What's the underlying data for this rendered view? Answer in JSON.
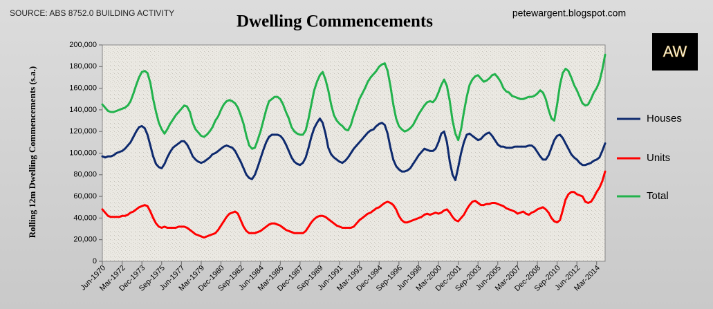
{
  "chart_data": {
    "type": "line",
    "title": "Dwelling Commencements",
    "source": "SOURCE: ABS 8752.0 BUILDING ACTIVITY",
    "watermark": "petewargent.blogspot.com",
    "logo": "AW",
    "y_label": "Rolling 12m Dwelling Commencements (s.a.)",
    "legend": "right",
    "ylim": [
      0,
      200000
    ],
    "yticks": [
      0,
      {
        "value": 20000,
        "label": "20,000"
      },
      {
        "value": 40000,
        "label": "40,000"
      },
      {
        "value": 60000,
        "label": "60,000"
      },
      {
        "value": 80000,
        "label": "80,000"
      },
      {
        "value": 100000,
        "label": "100,000"
      },
      {
        "value": 120000,
        "label": "120,000"
      },
      {
        "value": 140000,
        "label": "140,000"
      },
      {
        "value": 160000,
        "label": "160,000"
      },
      {
        "value": 180000,
        "label": "180,000"
      },
      {
        "value": 200000,
        "label": "200,000"
      }
    ],
    "categories": [
      "Jun-1970",
      null,
      null,
      null,
      null,
      null,
      null,
      "Mar-1972",
      null,
      null,
      null,
      null,
      null,
      null,
      "Dec-1973",
      null,
      null,
      null,
      null,
      null,
      null,
      "Sep-1975",
      null,
      null,
      null,
      null,
      null,
      null,
      "Jun-1977",
      null,
      null,
      null,
      null,
      null,
      null,
      "Mar-1979",
      null,
      null,
      null,
      null,
      null,
      null,
      "Dec-1980",
      null,
      null,
      null,
      null,
      null,
      null,
      "Sep-1982",
      null,
      null,
      null,
      null,
      null,
      null,
      "Jun-1984",
      null,
      null,
      null,
      null,
      null,
      null,
      "Mar-1986",
      null,
      null,
      null,
      null,
      null,
      null,
      "Dec-1987",
      null,
      null,
      null,
      null,
      null,
      null,
      "Sep-1989",
      null,
      null,
      null,
      null,
      null,
      null,
      "Jun-1991",
      null,
      null,
      null,
      null,
      null,
      null,
      "Mar-1993",
      null,
      null,
      null,
      null,
      null,
      null,
      "Dec-1994",
      null,
      null,
      null,
      null,
      null,
      null,
      "Sep-1996",
      null,
      null,
      null,
      null,
      null,
      null,
      "Jun-1998",
      null,
      null,
      null,
      null,
      null,
      null,
      "Mar-2000",
      null,
      null,
      null,
      null,
      null,
      null,
      "Dec-2001",
      null,
      null,
      null,
      null,
      null,
      null,
      "Sep-2003",
      null,
      null,
      null,
      null,
      null,
      null,
      "Jun-2005",
      null,
      null,
      null,
      null,
      null,
      null,
      "Mar-2007",
      null,
      null,
      null,
      null,
      null,
      null,
      "Dec-2008",
      null,
      null,
      null,
      null,
      null,
      null,
      "Sep-2010",
      null,
      null,
      null,
      null,
      null,
      null,
      "Jun-2012",
      null,
      null,
      null,
      null,
      null,
      null,
      "Mar-2014",
      null,
      null,
      null
    ],
    "series": [
      {
        "name": "Houses",
        "color": "#0e2a6e",
        "values": [
          97000,
          96000,
          97000,
          97000,
          98000,
          100000,
          101000,
          102000,
          104000,
          107000,
          110000,
          115000,
          120000,
          124000,
          125000,
          123000,
          117000,
          107000,
          97000,
          90000,
          87000,
          86000,
          90000,
          96000,
          101000,
          105000,
          107000,
          109000,
          111000,
          111000,
          108000,
          103000,
          97000,
          94000,
          92000,
          91000,
          92000,
          94000,
          96000,
          99000,
          100000,
          102000,
          104000,
          106000,
          107000,
          106000,
          105000,
          102000,
          97000,
          92000,
          86000,
          80000,
          77000,
          76000,
          80000,
          87000,
          95000,
          103000,
          110000,
          115000,
          117000,
          117000,
          117000,
          116000,
          113000,
          108000,
          102000,
          96000,
          92000,
          90000,
          89000,
          91000,
          96000,
          105000,
          115000,
          123000,
          128000,
          132000,
          128000,
          118000,
          105000,
          99000,
          96000,
          94000,
          92000,
          91000,
          93000,
          96000,
          100000,
          104000,
          107000,
          110000,
          113000,
          116000,
          119000,
          121000,
          122000,
          125000,
          127000,
          128000,
          126000,
          118000,
          105000,
          94000,
          88000,
          85000,
          83000,
          83000,
          84000,
          86000,
          90000,
          94000,
          98000,
          101000,
          104000,
          103000,
          102000,
          102000,
          104000,
          110000,
          118000,
          120000,
          110000,
          92000,
          80000,
          75000,
          87000,
          100000,
          110000,
          117000,
          118000,
          116000,
          114000,
          112000,
          113000,
          116000,
          118000,
          119000,
          116000,
          112000,
          108000,
          106000,
          106000,
          105000,
          105000,
          105000,
          106000,
          106000,
          106000,
          106000,
          106000,
          107000,
          107000,
          105000,
          101000,
          97000,
          94000,
          94000,
          98000,
          105000,
          112000,
          116000,
          117000,
          114000,
          109000,
          104000,
          99000,
          96000,
          94000,
          91000,
          89000,
          89000,
          90000,
          91000,
          93000,
          94000,
          96000,
          102000,
          109000
        ]
      },
      {
        "name": "Units",
        "color": "#ff0000",
        "values": [
          48000,
          45000,
          42000,
          41000,
          41000,
          41000,
          41000,
          42000,
          42000,
          43000,
          45000,
          46000,
          48000,
          50000,
          51000,
          52000,
          51000,
          46000,
          40000,
          35000,
          32000,
          31000,
          32000,
          31000,
          31000,
          31000,
          31000,
          32000,
          32000,
          32000,
          31000,
          29000,
          27000,
          25000,
          24000,
          23000,
          22000,
          23000,
          24000,
          25000,
          26000,
          29000,
          33000,
          37000,
          41000,
          44000,
          45000,
          46000,
          44000,
          38000,
          32000,
          28000,
          26000,
          26000,
          26000,
          27000,
          28000,
          30000,
          32000,
          34000,
          35000,
          35000,
          34000,
          33000,
          31000,
          29000,
          28000,
          27000,
          26000,
          26000,
          26000,
          26000,
          28000,
          32000,
          36000,
          39000,
          41000,
          42000,
          42000,
          41000,
          39000,
          37000,
          35000,
          33000,
          32000,
          31000,
          31000,
          31000,
          31000,
          32000,
          35000,
          38000,
          40000,
          42000,
          44000,
          45000,
          47000,
          49000,
          50000,
          52000,
          54000,
          55000,
          54000,
          52000,
          48000,
          42000,
          38000,
          36000,
          36000,
          37000,
          38000,
          39000,
          40000,
          41000,
          43000,
          44000,
          43000,
          44000,
          45000,
          44000,
          45000,
          47000,
          48000,
          45000,
          41000,
          38000,
          37000,
          40000,
          43000,
          48000,
          52000,
          55000,
          56000,
          54000,
          52000,
          52000,
          53000,
          53000,
          54000,
          54000,
          53000,
          52000,
          51000,
          49000,
          48000,
          47000,
          46000,
          44000,
          45000,
          46000,
          44000,
          43000,
          45000,
          46000,
          48000,
          49000,
          50000,
          48000,
          45000,
          40000,
          37000,
          36000,
          38000,
          47000,
          57000,
          62000,
          64000,
          64000,
          62000,
          61000,
          60000,
          55000,
          54000,
          55000,
          59000,
          64000,
          68000,
          74000,
          83000
        ]
      },
      {
        "name": "Total",
        "color": "#22b24c",
        "values": [
          145000,
          142000,
          139000,
          138000,
          138000,
          139000,
          140000,
          141000,
          142000,
          144000,
          148000,
          155000,
          163000,
          170000,
          175000,
          176000,
          174000,
          165000,
          150000,
          138000,
          128000,
          122000,
          118000,
          122000,
          127000,
          131000,
          135000,
          138000,
          141000,
          144000,
          143000,
          138000,
          128000,
          122000,
          119000,
          116000,
          115000,
          117000,
          120000,
          124000,
          130000,
          134000,
          140000,
          145000,
          148000,
          149000,
          148000,
          146000,
          142000,
          135000,
          127000,
          116000,
          107000,
          104000,
          105000,
          112000,
          120000,
          130000,
          140000,
          148000,
          150000,
          152000,
          152000,
          150000,
          145000,
          138000,
          132000,
          124000,
          120000,
          118000,
          117000,
          117000,
          121000,
          132000,
          145000,
          158000,
          166000,
          172000,
          175000,
          168000,
          158000,
          145000,
          135000,
          130000,
          127000,
          125000,
          122000,
          121000,
          126000,
          135000,
          142000,
          150000,
          155000,
          160000,
          166000,
          170000,
          173000,
          176000,
          180000,
          182000,
          183000,
          176000,
          162000,
          145000,
          132000,
          125000,
          122000,
          120000,
          121000,
          123000,
          126000,
          131000,
          136000,
          140000,
          144000,
          147000,
          148000,
          147000,
          150000,
          156000,
          163000,
          168000,
          162000,
          148000,
          130000,
          118000,
          112000,
          122000,
          138000,
          152000,
          163000,
          168000,
          171000,
          172000,
          169000,
          166000,
          167000,
          169000,
          172000,
          173000,
          170000,
          166000,
          160000,
          157000,
          156000,
          153000,
          152000,
          151000,
          150000,
          150000,
          151000,
          152000,
          152000,
          153000,
          155000,
          158000,
          156000,
          150000,
          140000,
          132000,
          130000,
          145000,
          163000,
          174000,
          178000,
          176000,
          170000,
          163000,
          158000,
          152000,
          146000,
          144000,
          145000,
          150000,
          156000,
          160000,
          166000,
          177000,
          191000
        ]
      }
    ]
  }
}
